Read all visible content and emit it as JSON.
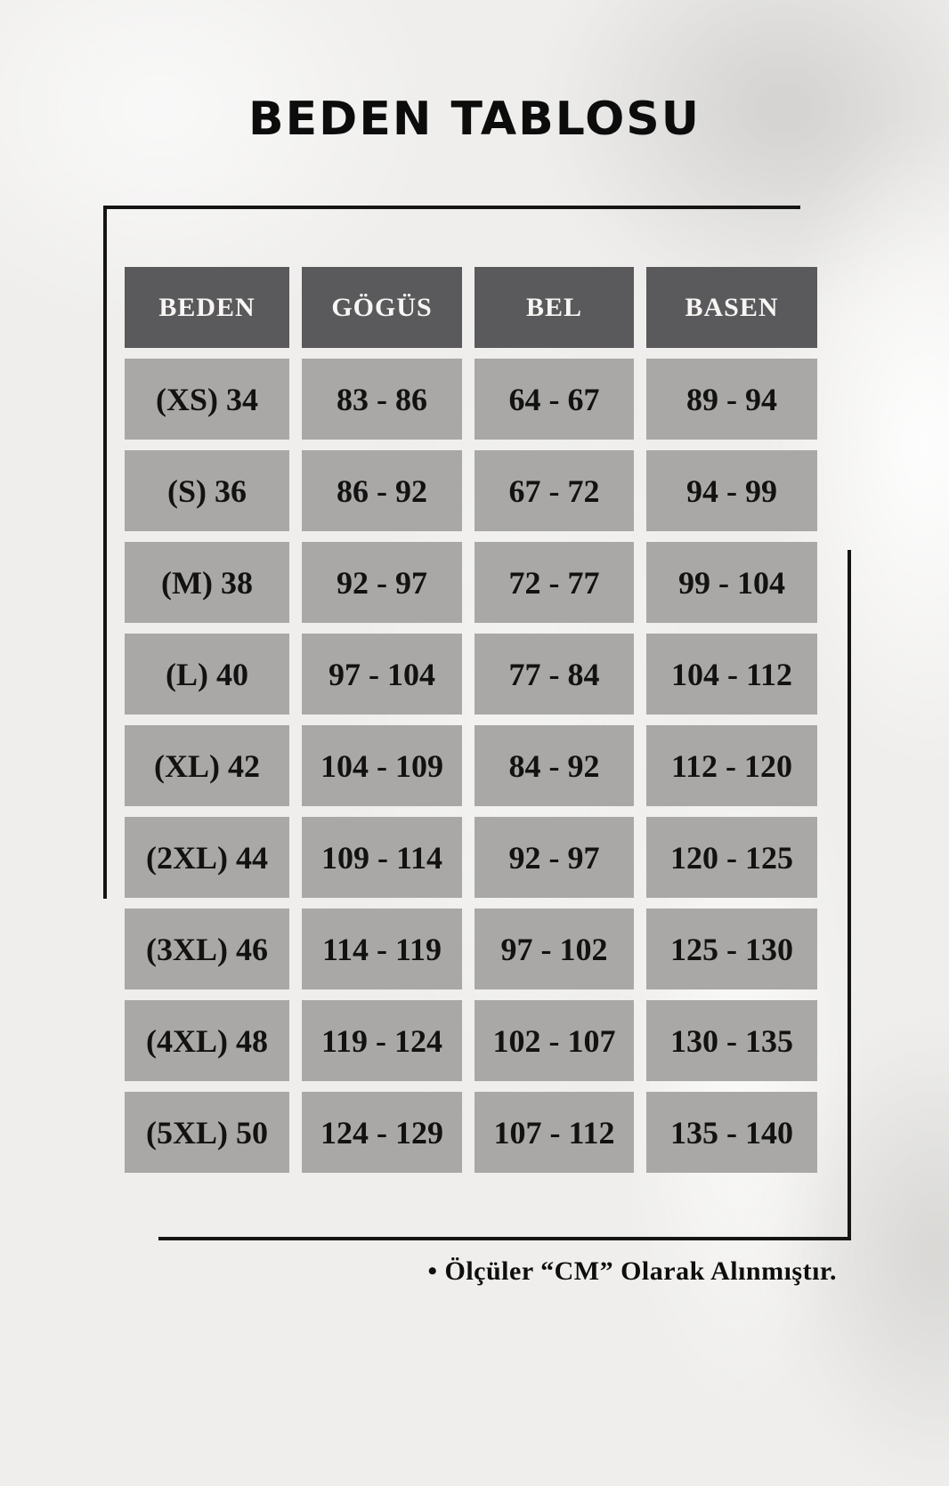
{
  "chart_data": {
    "type": "table",
    "title": "BEDEN TABLOSU",
    "columns": [
      "BEDEN",
      "GÖGÜS",
      "BEL",
      "BASEN"
    ],
    "rows": [
      [
        "(XS) 34",
        "83 - 86",
        "64 - 67",
        "89 - 94"
      ],
      [
        "(S) 36",
        "86 - 92",
        "67 - 72",
        "94 - 99"
      ],
      [
        "(M) 38",
        "92 - 97",
        "72 - 77",
        "99 - 104"
      ],
      [
        "(L) 40",
        "97 - 104",
        "77 - 84",
        "104 - 112"
      ],
      [
        "(XL) 42",
        "104 - 109",
        "84 - 92",
        "112 - 120"
      ],
      [
        "(2XL) 44",
        "109 - 114",
        "92 - 97",
        "120 - 125"
      ],
      [
        "(3XL) 46",
        "114 - 119",
        "97 - 102",
        "125 - 130"
      ],
      [
        "(4XL) 48",
        "119 - 124",
        "102 - 107",
        "130 - 135"
      ],
      [
        "(5XL) 50",
        "124 - 129",
        "107 - 112",
        "135 - 140"
      ]
    ],
    "footnote": "• Ölçüler “CM” Olarak Alınmıştır.",
    "legend_position": "none",
    "grid": false
  },
  "colors": {
    "page_background": "#efeeec",
    "header_cell_background": "#5a595b",
    "data_cell_background": "#a9a8a6",
    "header_text": "#f7f6f4",
    "cell_text": "#121212",
    "frame_line": "#151515"
  }
}
